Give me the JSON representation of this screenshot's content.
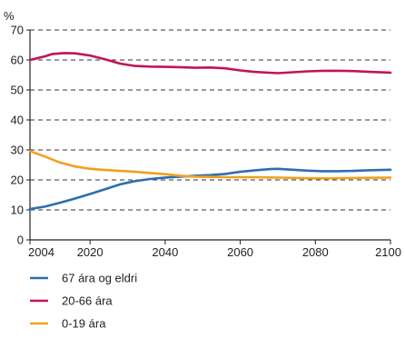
{
  "chart_data": {
    "type": "line",
    "title": "",
    "xlabel": "",
    "ylabel": "%",
    "xlim": [
      2004,
      2100
    ],
    "ylim": [
      0,
      70
    ],
    "x_ticks": [
      2004,
      2020,
      2040,
      2060,
      2080,
      2100
    ],
    "y_ticks": [
      0,
      10,
      20,
      30,
      40,
      50,
      60,
      70
    ],
    "grid": "horizontal-dashed",
    "legend_position": "bottom-left",
    "series": [
      {
        "name": "67 ára og eldri",
        "color": "#2b6fb0",
        "points": [
          [
            2004,
            10.3
          ],
          [
            2008,
            11.1
          ],
          [
            2012,
            12.4
          ],
          [
            2016,
            13.8
          ],
          [
            2020,
            15.3
          ],
          [
            2024,
            16.9
          ],
          [
            2028,
            18.5
          ],
          [
            2032,
            19.6
          ],
          [
            2036,
            20.3
          ],
          [
            2040,
            20.8
          ],
          [
            2044,
            21.1
          ],
          [
            2048,
            21.4
          ],
          [
            2052,
            21.6
          ],
          [
            2056,
            22.0
          ],
          [
            2060,
            22.7
          ],
          [
            2064,
            23.2
          ],
          [
            2068,
            23.6
          ],
          [
            2070,
            23.7
          ],
          [
            2074,
            23.4
          ],
          [
            2078,
            23.1
          ],
          [
            2082,
            22.9
          ],
          [
            2086,
            22.9
          ],
          [
            2090,
            23.0
          ],
          [
            2094,
            23.2
          ],
          [
            2100,
            23.4
          ]
        ]
      },
      {
        "name": "20-66 ára",
        "color": "#c0145a",
        "points": [
          [
            2004,
            60.0
          ],
          [
            2008,
            61.2
          ],
          [
            2010,
            62.0
          ],
          [
            2013,
            62.3
          ],
          [
            2016,
            62.2
          ],
          [
            2020,
            61.5
          ],
          [
            2024,
            60.2
          ],
          [
            2028,
            58.8
          ],
          [
            2032,
            58.0
          ],
          [
            2036,
            57.8
          ],
          [
            2040,
            57.7
          ],
          [
            2044,
            57.6
          ],
          [
            2048,
            57.4
          ],
          [
            2052,
            57.5
          ],
          [
            2056,
            57.2
          ],
          [
            2060,
            56.5
          ],
          [
            2064,
            56.0
          ],
          [
            2070,
            55.6
          ],
          [
            2074,
            55.9
          ],
          [
            2078,
            56.2
          ],
          [
            2082,
            56.4
          ],
          [
            2086,
            56.4
          ],
          [
            2090,
            56.3
          ],
          [
            2095,
            56.0
          ],
          [
            2100,
            55.8
          ]
        ]
      },
      {
        "name": "0-19 ára",
        "color": "#f2a01e",
        "points": [
          [
            2004,
            29.6
          ],
          [
            2008,
            27.8
          ],
          [
            2012,
            25.8
          ],
          [
            2016,
            24.5
          ],
          [
            2020,
            23.7
          ],
          [
            2024,
            23.3
          ],
          [
            2028,
            23.0
          ],
          [
            2032,
            22.7
          ],
          [
            2036,
            22.3
          ],
          [
            2040,
            21.9
          ],
          [
            2044,
            21.4
          ],
          [
            2048,
            21.1
          ],
          [
            2052,
            21.0
          ],
          [
            2056,
            20.9
          ],
          [
            2060,
            20.9
          ],
          [
            2064,
            20.9
          ],
          [
            2070,
            20.8
          ],
          [
            2076,
            20.6
          ],
          [
            2082,
            20.5
          ],
          [
            2088,
            20.6
          ],
          [
            2094,
            20.7
          ],
          [
            2100,
            20.8
          ]
        ]
      }
    ]
  }
}
